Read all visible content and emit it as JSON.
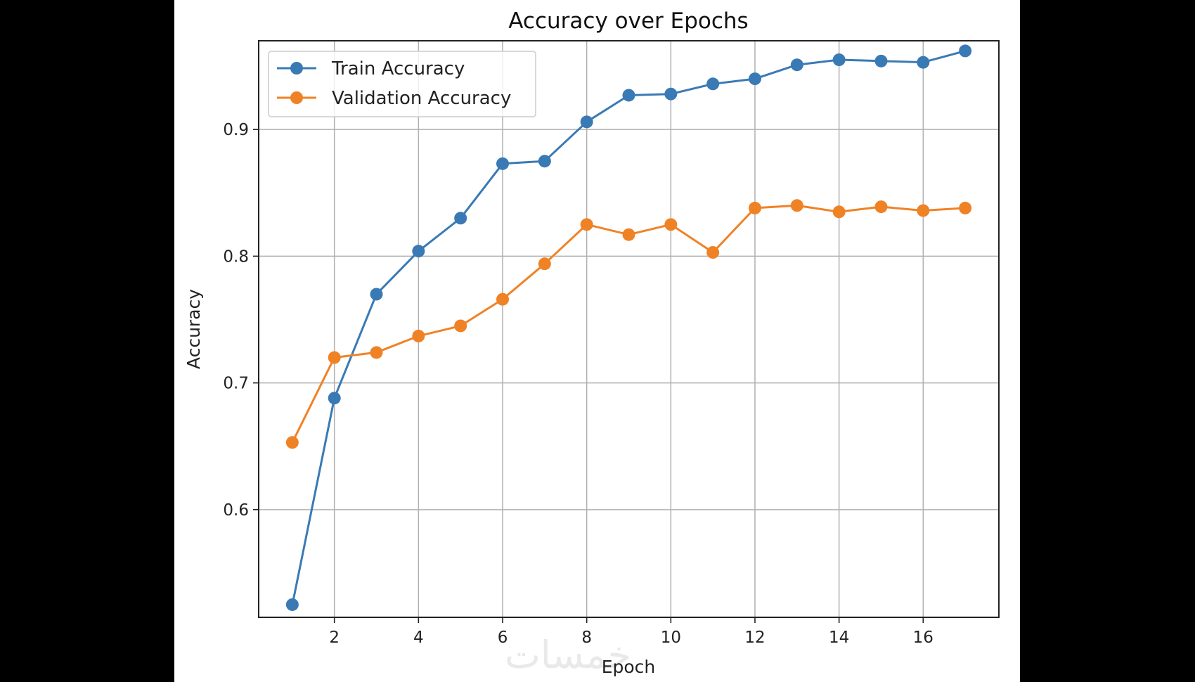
{
  "watermark": "خمسات",
  "chart_data": {
    "type": "line",
    "title": "Accuracy over Epochs",
    "xlabel": "Epoch",
    "ylabel": "Accuracy",
    "xlim": [
      0.2,
      17.8
    ],
    "ylim": [
      0.515,
      0.97
    ],
    "xticks": [
      2,
      4,
      6,
      8,
      10,
      12,
      14,
      16
    ],
    "yticks": [
      0.6,
      0.7,
      0.8,
      0.9
    ],
    "ytick_labels": [
      "0.6",
      "0.7",
      "0.8",
      "0.9"
    ],
    "grid": true,
    "legend_position": "upper-left",
    "x": [
      1,
      2,
      3,
      4,
      5,
      6,
      7,
      8,
      9,
      10,
      11,
      12,
      13,
      14,
      15,
      16,
      17
    ],
    "series": [
      {
        "name": "Train Accuracy",
        "color": "#3a7ab4",
        "marker": "circle",
        "values": [
          0.525,
          0.688,
          0.77,
          0.804,
          0.83,
          0.873,
          0.875,
          0.906,
          0.927,
          0.928,
          0.936,
          0.94,
          0.951,
          0.955,
          0.954,
          0.953,
          0.962
        ]
      },
      {
        "name": "Validation Accuracy",
        "color": "#f08226",
        "marker": "circle",
        "values": [
          0.653,
          0.72,
          0.724,
          0.737,
          0.745,
          0.766,
          0.794,
          0.825,
          0.817,
          0.825,
          0.803,
          0.838,
          0.84,
          0.835,
          0.839,
          0.836,
          0.838
        ]
      }
    ]
  }
}
